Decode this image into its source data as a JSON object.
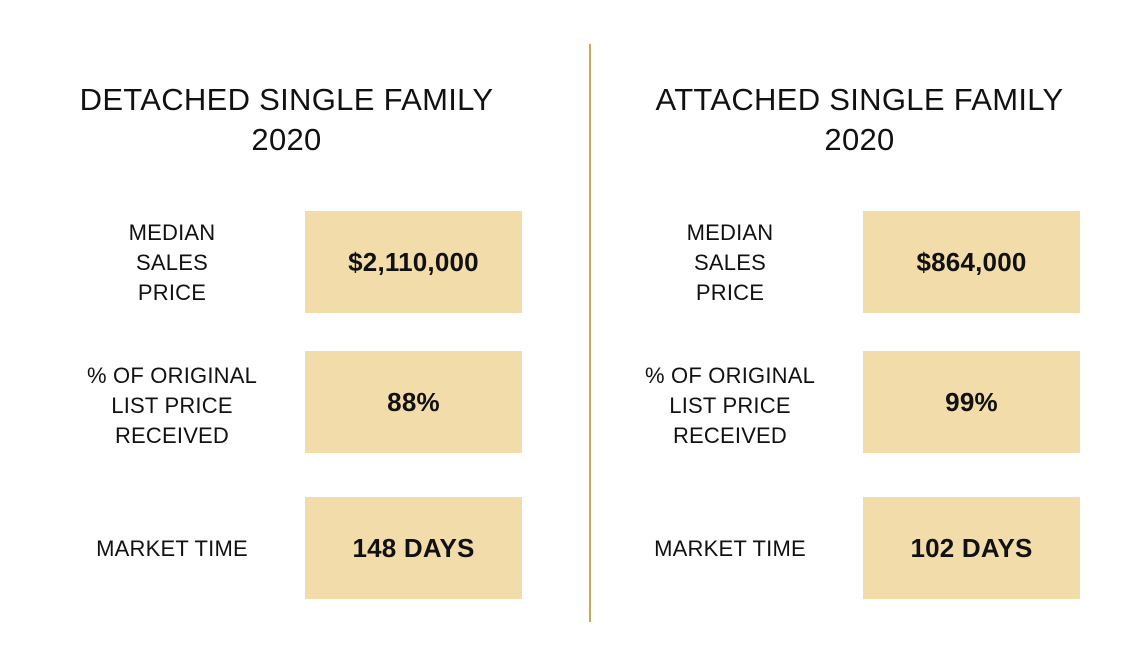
{
  "sections": [
    {
      "title_line1": "DETACHED SINGLE FAMILY",
      "title_line2": "2020",
      "metrics": [
        {
          "label_lines": [
            "MEDIAN",
            "SALES",
            "PRICE"
          ],
          "value": "$2,110,000"
        },
        {
          "label_lines": [
            "% OF ORIGINAL",
            "LIST PRICE",
            "RECEIVED"
          ],
          "value": "88%"
        },
        {
          "label_lines": [
            "MARKET TIME"
          ],
          "value": "148 DAYS"
        }
      ]
    },
    {
      "title_line1": "ATTACHED SINGLE FAMILY",
      "title_line2": "2020",
      "metrics": [
        {
          "label_lines": [
            "MEDIAN",
            "SALES",
            "PRICE"
          ],
          "value": "$864,000"
        },
        {
          "label_lines": [
            "% OF ORIGINAL",
            "LIST PRICE",
            "RECEIVED"
          ],
          "value": "99%"
        },
        {
          "label_lines": [
            "MARKET TIME"
          ],
          "value": "102 DAYS"
        }
      ]
    }
  ],
  "colors": {
    "box_fill": "#f1dcaa",
    "divider": "#c9a85a"
  }
}
